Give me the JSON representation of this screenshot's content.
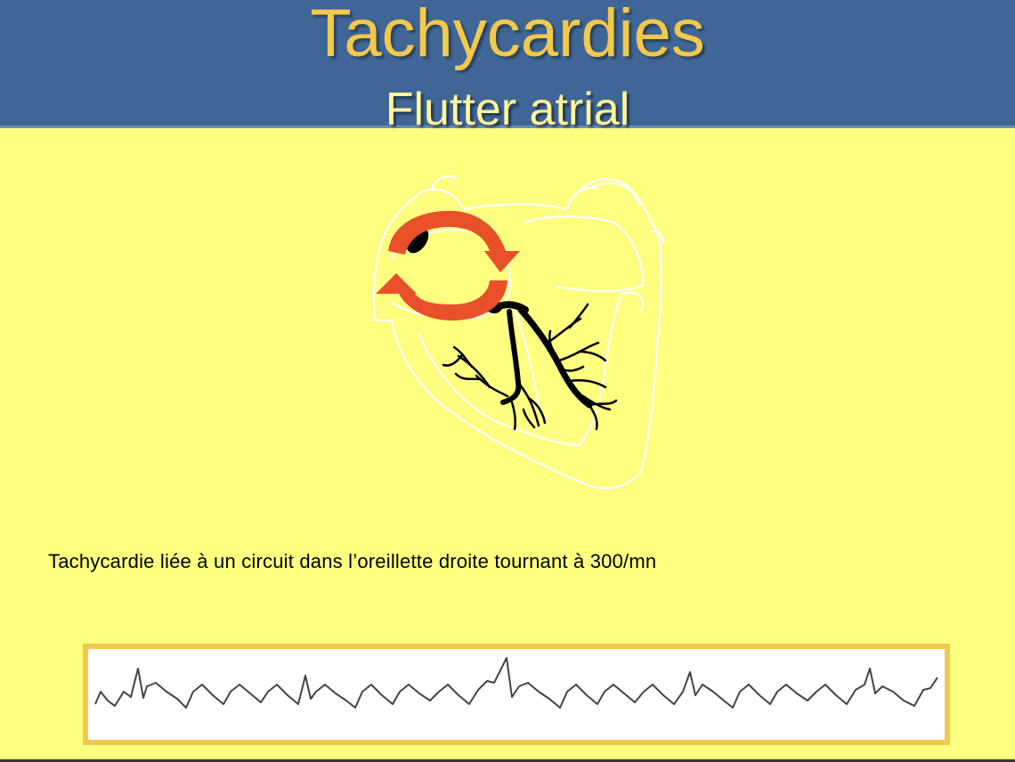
{
  "slide": {
    "title": "Tachycardies",
    "subtitle": "Flutter atrial",
    "caption": "Tachycardie liée à un circuit dans l’oreillette droite tournant à 300/mn"
  },
  "colors": {
    "header_bg": "#3f6696",
    "slide_bg": "#ffff80",
    "title_color": "#f2c94b",
    "subtitle_color": "#fff59a",
    "circuit_arrow": "#e8502a",
    "ecg_frame": "#f0c850"
  },
  "icons": {
    "heart": "heart-outline-icon",
    "circuit": "circular-arrows-icon",
    "conduction": "conduction-system-icon",
    "ecg": "ecg-trace-icon"
  }
}
